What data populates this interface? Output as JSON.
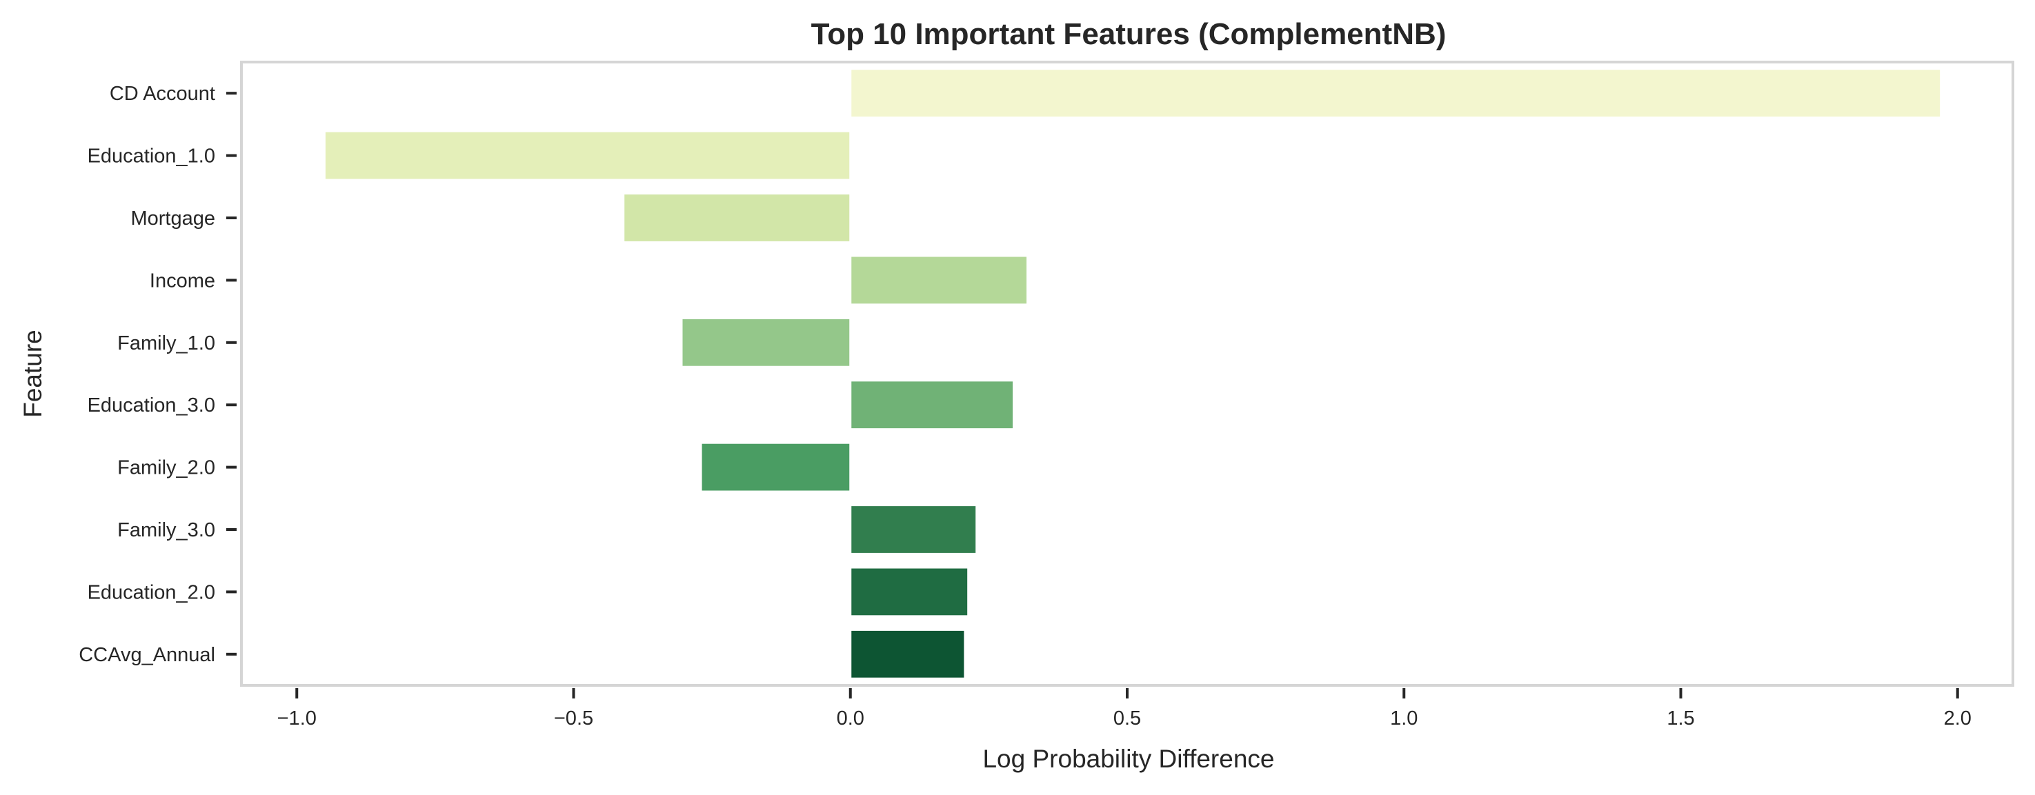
{
  "chart_data": {
    "type": "bar",
    "orientation": "horizontal",
    "title": "Top 10 Important Features (ComplementNB)",
    "xlabel": "Log Probability Difference",
    "ylabel": "Feature",
    "xlim": [
      -1.1,
      2.1
    ],
    "xticks": [
      -1.0,
      -0.5,
      0.0,
      0.5,
      1.0,
      1.5,
      2.0
    ],
    "xtick_labels": [
      "−1.0",
      "−0.5",
      "0.0",
      "0.5",
      "1.0",
      "1.5",
      "2.0"
    ],
    "grid": false,
    "categories": [
      "CD Account",
      "Education_1.0",
      "Mortgage",
      "Income",
      "Family_1.0",
      "Education_3.0",
      "Family_2.0",
      "Family_3.0",
      "Education_2.0",
      "CCAvg_Annual"
    ],
    "values": [
      1.97,
      -0.95,
      -0.41,
      0.32,
      -0.305,
      0.295,
      -0.27,
      0.228,
      0.213,
      0.207
    ],
    "colors": [
      "#f3f6cf",
      "#e4efb9",
      "#d2e6a8",
      "#b4d898",
      "#94c78a",
      "#70b276",
      "#4a9d63",
      "#317e4e",
      "#1f6c42",
      "#0d5533"
    ]
  }
}
